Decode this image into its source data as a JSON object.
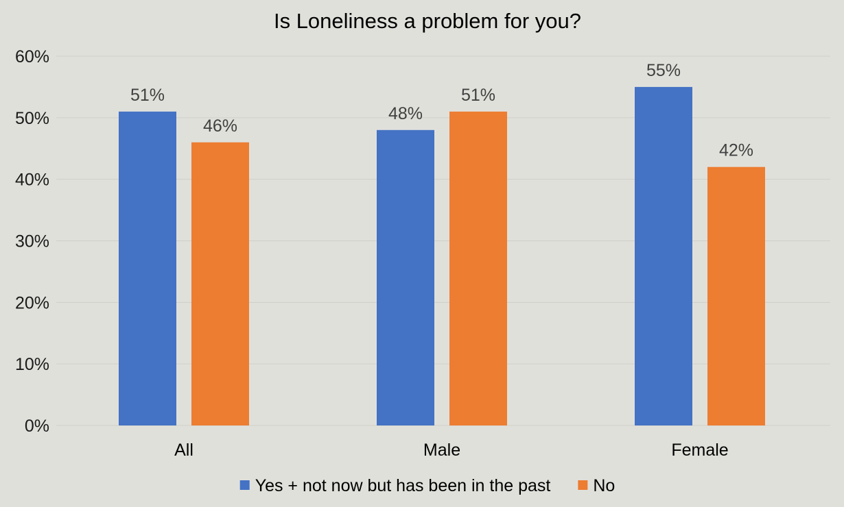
{
  "chart_data": {
    "type": "bar",
    "title": "Is Loneliness a problem for you?",
    "categories": [
      "All",
      "Male",
      "Female"
    ],
    "series": [
      {
        "name": "Yes + not now but has been in the past",
        "values": [
          51,
          48,
          55
        ],
        "labels": [
          "51%",
          "48%",
          "55%"
        ],
        "color": "#4472c4"
      },
      {
        "name": "No",
        "values": [
          46,
          51,
          42
        ],
        "labels": [
          "46%",
          "51%",
          "42%"
        ],
        "color": "#ed7d31"
      }
    ],
    "ylim": [
      0,
      60
    ],
    "yticks": [
      "0%",
      "10%",
      "20%",
      "30%",
      "40%",
      "50%",
      "60%"
    ],
    "grid": true,
    "legend_position": "bottom"
  }
}
